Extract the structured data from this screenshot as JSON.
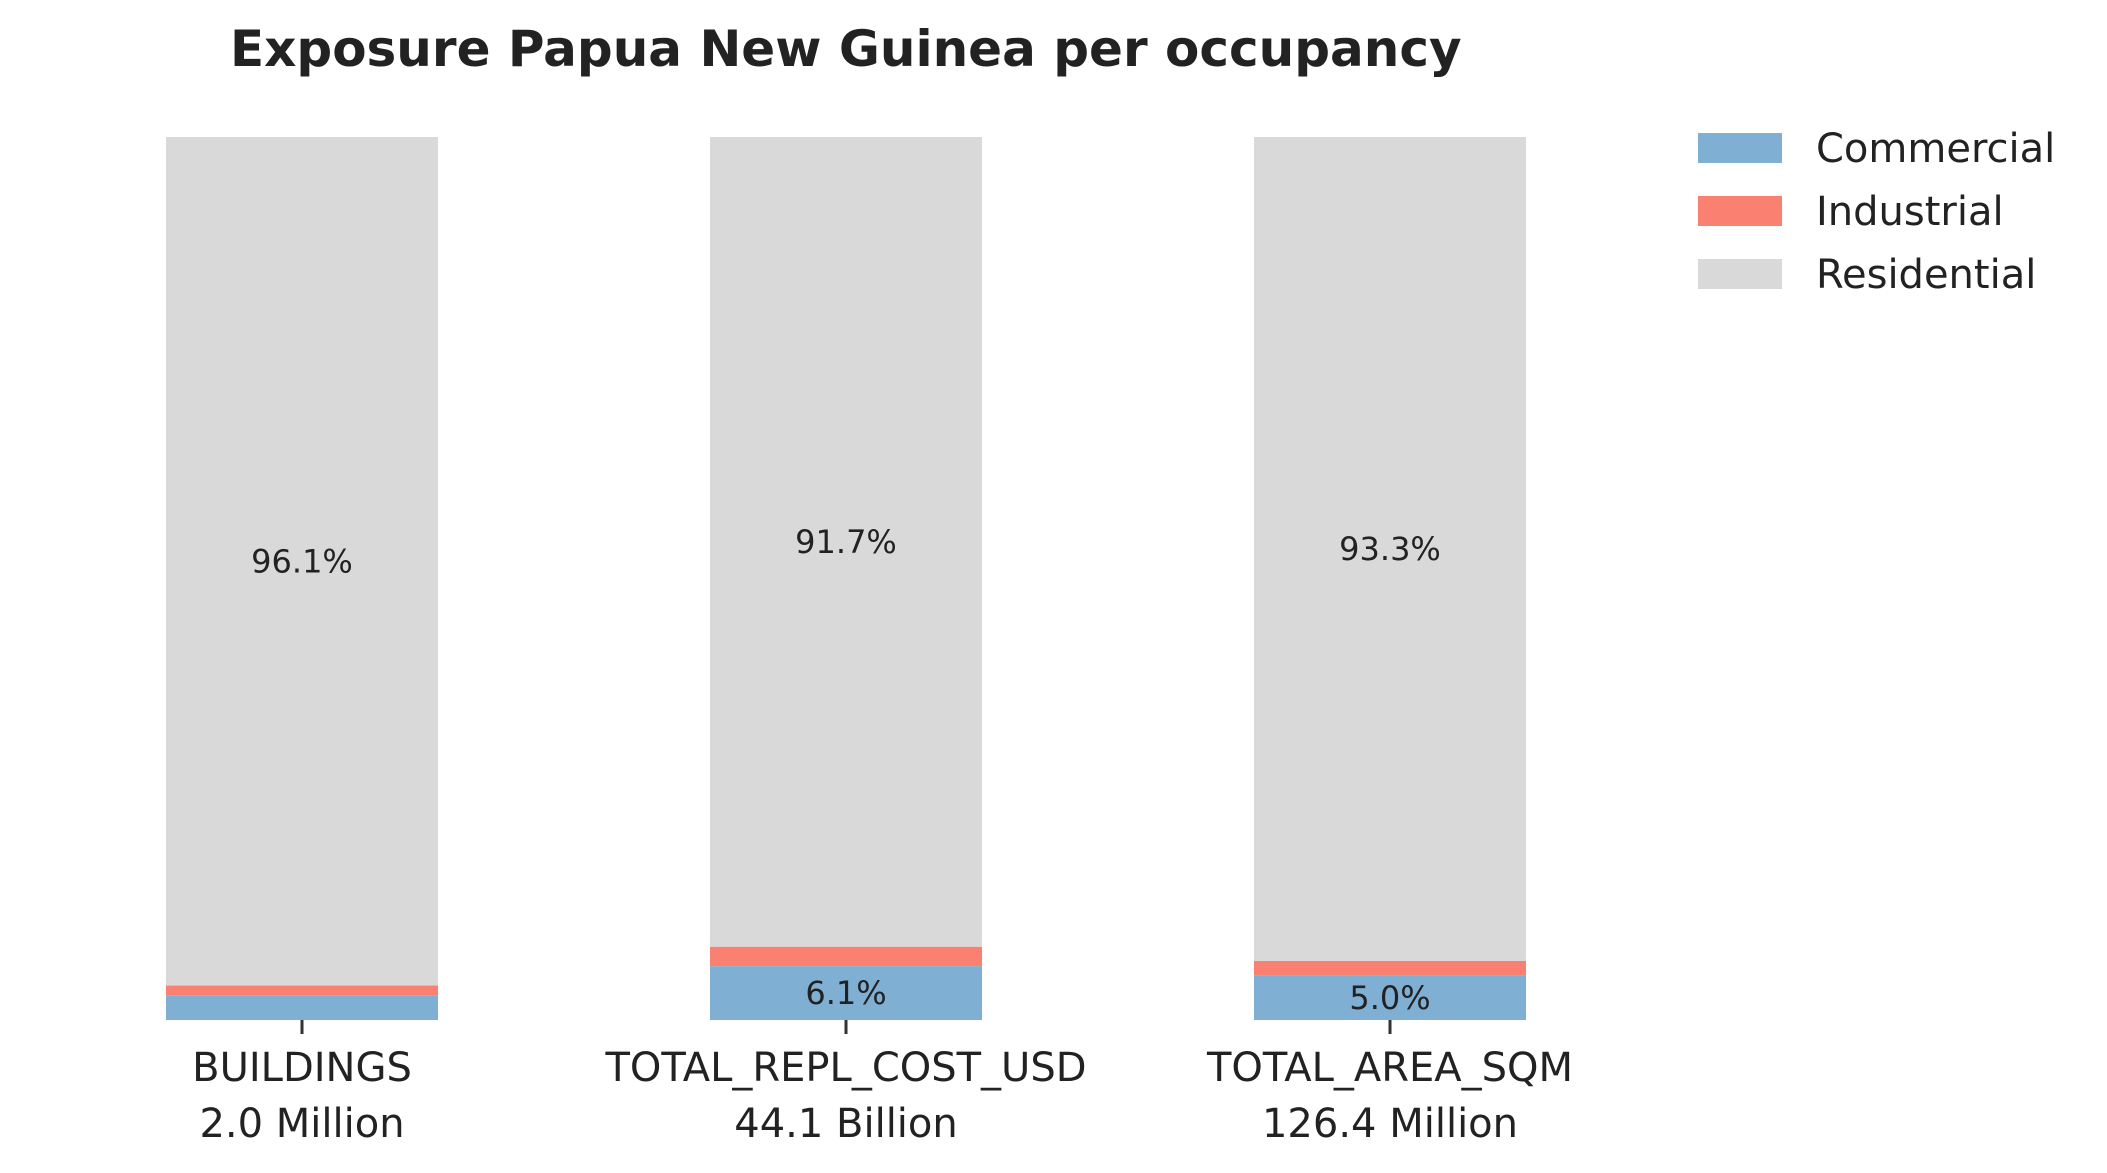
{
  "chart_data": {
    "type": "bar",
    "stacked": true,
    "normalized": true,
    "title": "Exposure Papua New Guinea per occupancy",
    "xlabel": "",
    "ylabel": "",
    "categories": [
      "BUILDINGS",
      "TOTAL_REPL_COST_USD",
      "TOTAL_AREA_SQM"
    ],
    "category_totals": [
      "2.0 Million",
      "44.1 Billion",
      "126.4 Million"
    ],
    "ylim": [
      0,
      100
    ],
    "grid": false,
    "legend_position": "top-right",
    "series": [
      {
        "name": "Commercial",
        "color": "#7fb0d4",
        "values": [
          2.8,
          6.1,
          5.0
        ]
      },
      {
        "name": "Industrial",
        "color": "#fa8072",
        "values": [
          1.1,
          2.2,
          1.7
        ]
      },
      {
        "name": "Residential",
        "color": "#d9d9d9",
        "values": [
          96.1,
          91.7,
          93.3
        ]
      }
    ],
    "data_labels": [
      [
        "",
        "6.1%",
        "5.0%"
      ],
      [
        "",
        "",
        ""
      ],
      [
        "96.1%",
        "91.7%",
        "93.3%"
      ]
    ]
  }
}
